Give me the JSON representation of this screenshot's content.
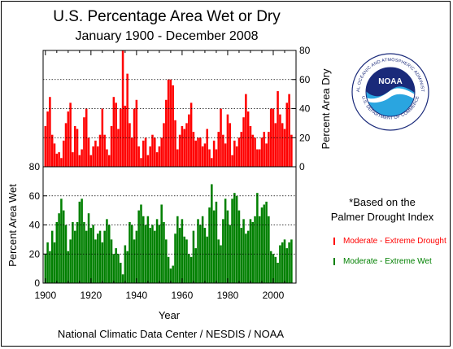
{
  "title": "U.S. Percentage Area Wet or Dry",
  "subtitle": "January 1900 - December  2008",
  "credit": "National Climatic Data Center / NESDIS / NOAA",
  "note": {
    "line1": "*Based on the",
    "line2": "Palmer Drought Index"
  },
  "legend": {
    "dry": "Moderate - Extreme Drought",
    "wet": "Moderate - Extreme Wet"
  },
  "logo": {
    "text": "NOAA",
    "ring_top": "NATIONAL OCEANIC AND ATMOSPHERIC ADMINISTRATION",
    "ring_bottom": "U.S. DEPARTMENT OF COMMERCE",
    "colors": {
      "dark": "#1a2a7a",
      "light": "#2aa5e0"
    }
  },
  "colors": {
    "dry": "#ff0000",
    "wet": "#008000",
    "gridline": "#000000"
  },
  "chart_data": [
    {
      "type": "bar",
      "panel": "dry",
      "ylabel": "Percent Area Dry",
      "ylim": [
        0,
        80
      ],
      "yticks": [
        0,
        20,
        40,
        60,
        80
      ],
      "xlim": [
        1899,
        2010
      ],
      "grid": true,
      "series": [
        {
          "name": "Moderate - Extreme Drought",
          "x": [
            1900,
            1901,
            1902,
            1903,
            1904,
            1905,
            1906,
            1907,
            1908,
            1909,
            1910,
            1911,
            1912,
            1913,
            1914,
            1915,
            1916,
            1917,
            1918,
            1919,
            1920,
            1921,
            1922,
            1923,
            1924,
            1925,
            1926,
            1927,
            1928,
            1929,
            1930,
            1931,
            1932,
            1933,
            1934,
            1935,
            1936,
            1937,
            1938,
            1939,
            1940,
            1941,
            1942,
            1943,
            1944,
            1945,
            1946,
            1947,
            1948,
            1949,
            1950,
            1951,
            1952,
            1953,
            1954,
            1955,
            1956,
            1957,
            1958,
            1959,
            1960,
            1961,
            1962,
            1963,
            1964,
            1965,
            1966,
            1967,
            1968,
            1969,
            1970,
            1971,
            1972,
            1973,
            1974,
            1975,
            1976,
            1977,
            1978,
            1979,
            1980,
            1981,
            1982,
            1983,
            1984,
            1985,
            1986,
            1987,
            1988,
            1989,
            1990,
            1991,
            1992,
            1993,
            1994,
            1995,
            1996,
            1997,
            1998,
            1999,
            2000,
            2001,
            2002,
            2003,
            2004,
            2005,
            2006,
            2007,
            2008
          ],
          "values": [
            28,
            38,
            48,
            22,
            16,
            9,
            10,
            6,
            18,
            30,
            38,
            44,
            10,
            28,
            26,
            8,
            12,
            34,
            40,
            20,
            8,
            14,
            18,
            14,
            22,
            40,
            22,
            12,
            8,
            28,
            48,
            44,
            26,
            40,
            80,
            42,
            64,
            30,
            20,
            40,
            46,
            14,
            6,
            18,
            20,
            8,
            14,
            22,
            20,
            10,
            14,
            20,
            30,
            46,
            60,
            60,
            56,
            32,
            12,
            22,
            28,
            26,
            30,
            36,
            44,
            24,
            18,
            20,
            20,
            14,
            16,
            26,
            12,
            6,
            18,
            12,
            24,
            40,
            22,
            16,
            36,
            30,
            8,
            18,
            14,
            20,
            24,
            34,
            50,
            38,
            28,
            22,
            20,
            12,
            12,
            20,
            24,
            16,
            24,
            40,
            40,
            30,
            52,
            36,
            30,
            26,
            44,
            50,
            22
          ]
        }
      ]
    },
    {
      "type": "bar",
      "panel": "wet",
      "xlabel": "Year",
      "ylabel": "Percent Area Wet",
      "ylim": [
        0,
        80
      ],
      "yticks": [
        0,
        20,
        40,
        60,
        80
      ],
      "xlim": [
        1899,
        2010
      ],
      "xticks": [
        1900,
        1920,
        1940,
        1960,
        1980,
        2000
      ],
      "grid": true,
      "series": [
        {
          "name": "Moderate - Extreme Wet",
          "x": [
            1900,
            1901,
            1902,
            1903,
            1904,
            1905,
            1906,
            1907,
            1908,
            1909,
            1910,
            1911,
            1912,
            1913,
            1914,
            1915,
            1916,
            1917,
            1918,
            1919,
            1920,
            1921,
            1922,
            1923,
            1924,
            1925,
            1926,
            1927,
            1928,
            1929,
            1930,
            1931,
            1932,
            1933,
            1934,
            1935,
            1936,
            1937,
            1938,
            1939,
            1940,
            1941,
            1942,
            1943,
            1944,
            1945,
            1946,
            1947,
            1948,
            1949,
            1950,
            1951,
            1952,
            1953,
            1954,
            1955,
            1956,
            1957,
            1958,
            1959,
            1960,
            1961,
            1962,
            1963,
            1964,
            1965,
            1966,
            1967,
            1968,
            1969,
            1970,
            1971,
            1972,
            1973,
            1974,
            1975,
            1976,
            1977,
            1978,
            1979,
            1980,
            1981,
            1982,
            1983,
            1984,
            1985,
            1986,
            1987,
            1988,
            1989,
            1990,
            1991,
            1992,
            1993,
            1994,
            1995,
            1996,
            1997,
            1998,
            1999,
            2000,
            2001,
            2002,
            2003,
            2004,
            2005,
            2006,
            2007,
            2008
          ],
          "values": [
            20,
            28,
            22,
            36,
            28,
            42,
            48,
            58,
            50,
            40,
            22,
            30,
            42,
            36,
            42,
            56,
            58,
            42,
            36,
            48,
            38,
            40,
            30,
            34,
            36,
            28,
            36,
            44,
            40,
            30,
            20,
            24,
            20,
            14,
            6,
            26,
            22,
            42,
            40,
            30,
            36,
            50,
            54,
            46,
            40,
            46,
            38,
            40,
            36,
            44,
            40,
            54,
            42,
            30,
            18,
            10,
            12,
            34,
            46,
            38,
            44,
            32,
            30,
            20,
            18,
            36,
            24,
            44,
            40,
            46,
            38,
            32,
            52,
            68,
            50,
            56,
            30,
            26,
            44,
            58,
            50,
            40,
            58,
            62,
            60,
            50,
            38,
            44,
            34,
            36,
            44,
            42,
            46,
            62,
            46,
            52,
            54,
            56,
            46,
            22,
            20,
            18,
            14,
            26,
            28,
            30,
            24,
            28,
            30
          ]
        }
      ]
    }
  ]
}
